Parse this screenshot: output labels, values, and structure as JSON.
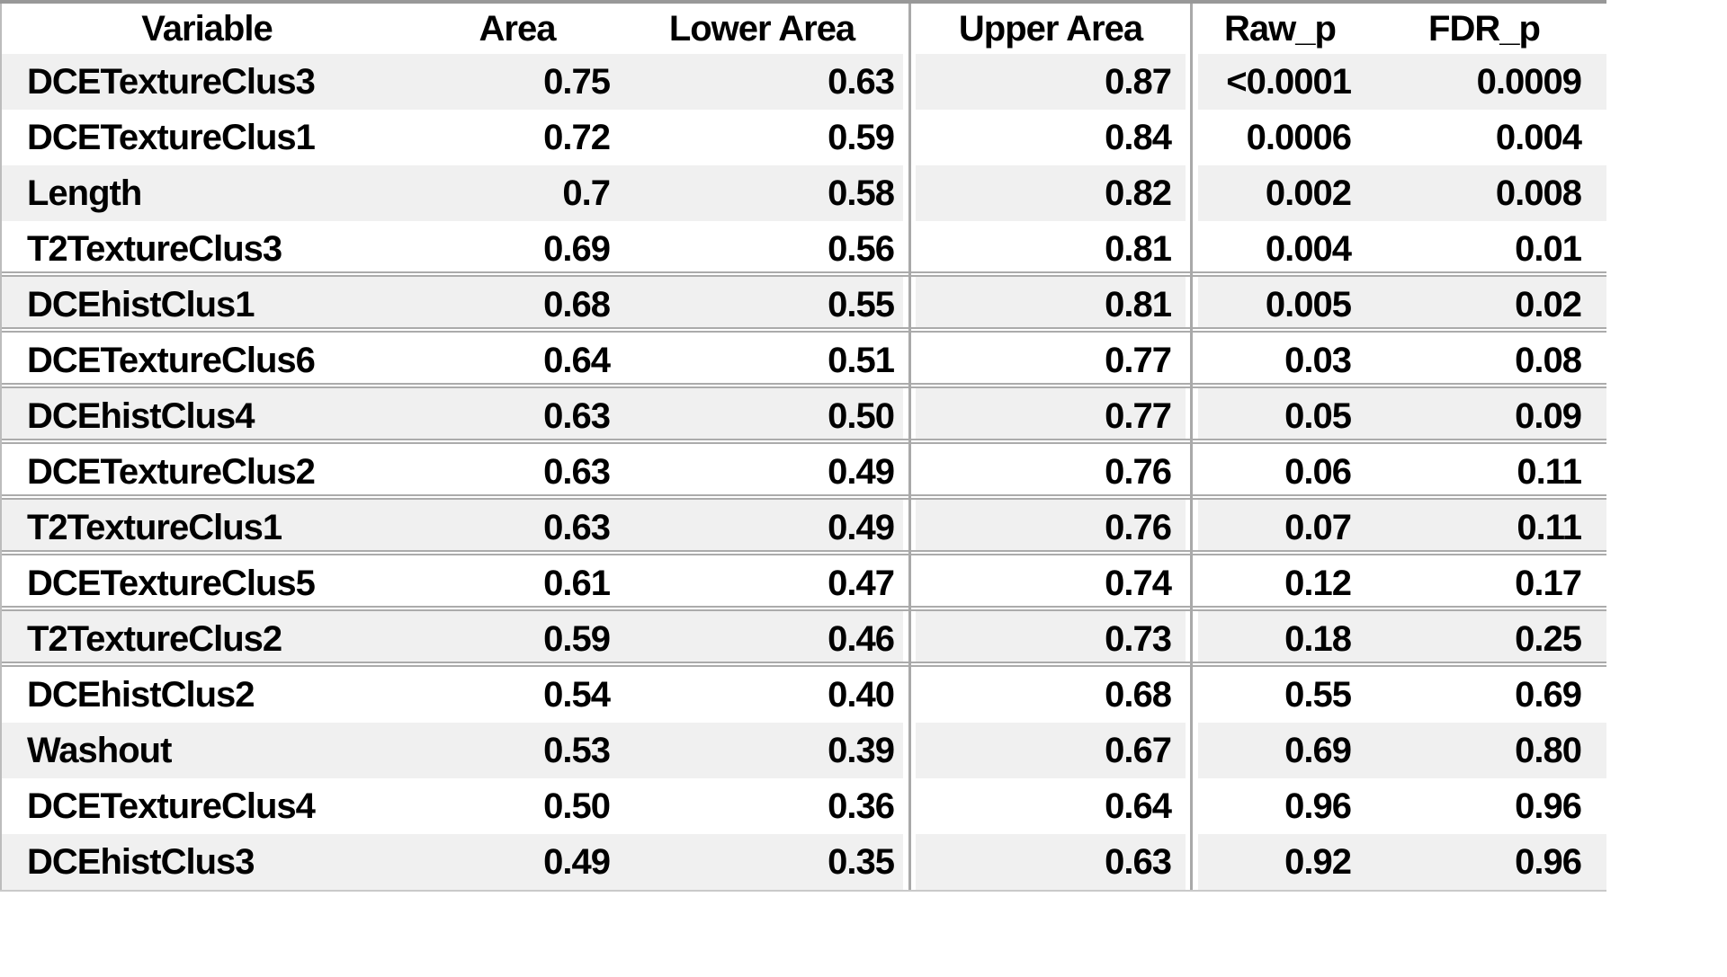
{
  "table": {
    "columns": [
      {
        "key": "variable",
        "label": "Variable"
      },
      {
        "key": "area",
        "label": "Area"
      },
      {
        "key": "lower_area",
        "label": "Lower Area"
      },
      {
        "key": "upper_area",
        "label": "Upper Area"
      },
      {
        "key": "raw_p",
        "label": "Raw_p"
      },
      {
        "key": "fdr_p",
        "label": "FDR_p"
      }
    ],
    "rows": [
      {
        "variable": "DCETextureClus3",
        "area": "0.75",
        "lower_area": "0.63",
        "upper_area": "0.87",
        "raw_p": "<0.0001",
        "fdr_p": "0.0009"
      },
      {
        "variable": "DCETextureClus1",
        "area": "0.72",
        "lower_area": "0.59",
        "upper_area": "0.84",
        "raw_p": "0.0006",
        "fdr_p": "0.004"
      },
      {
        "variable": "Length",
        "area": "0.7",
        "lower_area": "0.58",
        "upper_area": "0.82",
        "raw_p": "0.002",
        "fdr_p": "0.008"
      },
      {
        "variable": "T2TextureClus3",
        "area": "0.69",
        "lower_area": "0.56",
        "upper_area": "0.81",
        "raw_p": "0.004",
        "fdr_p": "0.01"
      },
      {
        "variable": "DCEhistClus1",
        "area": "0.68",
        "lower_area": "0.55",
        "upper_area": "0.81",
        "raw_p": "0.005",
        "fdr_p": "0.02"
      },
      {
        "variable": "DCETextureClus6",
        "area": "0.64",
        "lower_area": "0.51",
        "upper_area": "0.77",
        "raw_p": "0.03",
        "fdr_p": "0.08"
      },
      {
        "variable": "DCEhistClus4",
        "area": "0.63",
        "lower_area": "0.50",
        "upper_area": "0.77",
        "raw_p": "0.05",
        "fdr_p": "0.09"
      },
      {
        "variable": "DCETextureClus2",
        "area": "0.63",
        "lower_area": "0.49",
        "upper_area": "0.76",
        "raw_p": "0.06",
        "fdr_p": "0.11"
      },
      {
        "variable": "T2TextureClus1",
        "area": "0.63",
        "lower_area": "0.49",
        "upper_area": "0.76",
        "raw_p": "0.07",
        "fdr_p": "0.11"
      },
      {
        "variable": "DCETextureClus5",
        "area": "0.61",
        "lower_area": "0.47",
        "upper_area": "0.74",
        "raw_p": "0.12",
        "fdr_p": "0.17"
      },
      {
        "variable": "T2TextureClus2",
        "area": "0.59",
        "lower_area": "0.46",
        "upper_area": "0.73",
        "raw_p": "0.18",
        "fdr_p": "0.25"
      },
      {
        "variable": "DCEhistClus2",
        "area": "0.54",
        "lower_area": "0.40",
        "upper_area": "0.68",
        "raw_p": "0.55",
        "fdr_p": "0.69"
      },
      {
        "variable": "Washout",
        "area": "0.53",
        "lower_area": "0.39",
        "upper_area": "0.67",
        "raw_p": "0.69",
        "fdr_p": "0.80"
      },
      {
        "variable": "DCETextureClus4",
        "area": "0.50",
        "lower_area": "0.36",
        "upper_area": "0.64",
        "raw_p": "0.96",
        "fdr_p": "0.96"
      },
      {
        "variable": "DCEhistClus3",
        "area": "0.49",
        "lower_area": "0.35",
        "upper_area": "0.63",
        "raw_p": "0.92",
        "fdr_p": "0.96"
      }
    ]
  },
  "colors": {
    "row_shade": "#f0f0f0",
    "grid_line": "#ababab",
    "text": "#000000",
    "background": "#ffffff"
  },
  "chart_data": {
    "type": "table",
    "title": "",
    "columns": [
      "Variable",
      "Area",
      "Lower Area",
      "Upper Area",
      "Raw_p",
      "FDR_p"
    ],
    "rows": [
      [
        "DCETextureClus3",
        "0.75",
        "0.63",
        "0.87",
        "<0.0001",
        "0.0009"
      ],
      [
        "DCETextureClus1",
        "0.72",
        "0.59",
        "0.84",
        "0.0006",
        "0.004"
      ],
      [
        "Length",
        "0.7",
        "0.58",
        "0.82",
        "0.002",
        "0.008"
      ],
      [
        "T2TextureClus3",
        "0.69",
        "0.56",
        "0.81",
        "0.004",
        "0.01"
      ],
      [
        "DCEhistClus1",
        "0.68",
        "0.55",
        "0.81",
        "0.005",
        "0.02"
      ],
      [
        "DCETextureClus6",
        "0.64",
        "0.51",
        "0.77",
        "0.03",
        "0.08"
      ],
      [
        "DCEhistClus4",
        "0.63",
        "0.50",
        "0.77",
        "0.05",
        "0.09"
      ],
      [
        "DCETextureClus2",
        "0.63",
        "0.49",
        "0.76",
        "0.06",
        "0.11"
      ],
      [
        "T2TextureClus1",
        "0.63",
        "0.49",
        "0.76",
        "0.07",
        "0.11"
      ],
      [
        "DCETextureClus5",
        "0.61",
        "0.47",
        "0.74",
        "0.12",
        "0.17"
      ],
      [
        "T2TextureClus2",
        "0.59",
        "0.46",
        "0.73",
        "0.18",
        "0.25"
      ],
      [
        "DCEhistClus2",
        "0.54",
        "0.40",
        "0.68",
        "0.55",
        "0.69"
      ],
      [
        "Washout",
        "0.53",
        "0.39",
        "0.67",
        "0.69",
        "0.80"
      ],
      [
        "DCETextureClus4",
        "0.50",
        "0.36",
        "0.64",
        "0.96",
        "0.96"
      ],
      [
        "DCEhistClus3",
        "0.49",
        "0.35",
        "0.63",
        "0.92",
        "0.96"
      ]
    ]
  }
}
